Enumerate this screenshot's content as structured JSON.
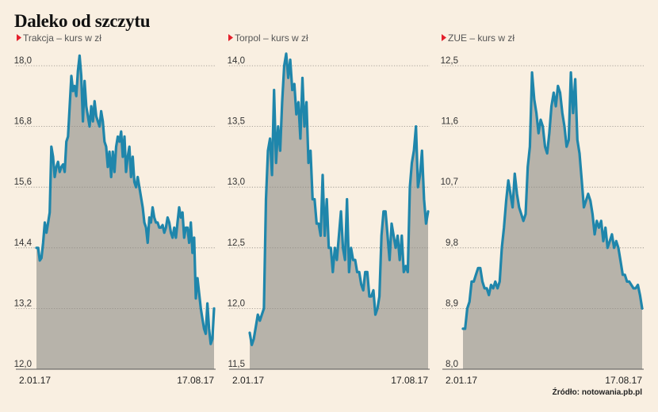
{
  "title": "Daleko od szczytu",
  "source": "Źródło: notowania.pb.pl",
  "colors": {
    "background": "#f9efe1",
    "line": "#1f86ab",
    "area": "#b7b3aa",
    "grid": "#8f8a84",
    "marker": "#e4202c"
  },
  "chart_data": [
    {
      "type": "area",
      "subtitle": "Trakcja – kurs w zł",
      "ylim": [
        12.0,
        18.8
      ],
      "yticks": [
        "18,0",
        "16,8",
        "15,6",
        "14,4",
        "13,2",
        "12,0"
      ],
      "ytick_values": [
        18.0,
        16.8,
        15.6,
        14.4,
        13.2,
        12.0
      ],
      "x_start_label": "2.01.17",
      "x_end_label": "17.08.17",
      "grid": true,
      "values": [
        14.4,
        14.4,
        14.15,
        14.2,
        14.5,
        14.9,
        14.7,
        14.9,
        15.1,
        16.4,
        16.2,
        15.8,
        16.0,
        16.1,
        15.9,
        16.0,
        16.05,
        15.9,
        16.5,
        16.6,
        17.2,
        17.8,
        17.5,
        17.6,
        17.4,
        17.9,
        18.2,
        17.8,
        16.9,
        17.7,
        17.2,
        17.0,
        16.8,
        17.2,
        16.9,
        17.3,
        17.0,
        16.9,
        16.8,
        17.1,
        16.9,
        16.5,
        16.4,
        16.0,
        16.3,
        15.8,
        16.3,
        15.9,
        16.4,
        16.6,
        16.5,
        16.7,
        16.2,
        16.6,
        15.9,
        16.2,
        16.4,
        15.8,
        16.2,
        15.7,
        15.6,
        15.8,
        15.6,
        15.4,
        15.2,
        14.9,
        14.8,
        14.5,
        15.0,
        14.9,
        15.2,
        15.0,
        14.9,
        14.9,
        14.8,
        14.8,
        14.85,
        14.7,
        14.8,
        15.0,
        14.9,
        14.7,
        14.6,
        14.8,
        14.6,
        14.9,
        15.2,
        15.0,
        15.1,
        14.6,
        14.8,
        14.8,
        14.5,
        14.9,
        14.3,
        14.6,
        13.4,
        13.8,
        13.5,
        13.2,
        13.0,
        12.8,
        12.7,
        13.3,
        12.8,
        12.5,
        12.6,
        13.2
      ]
    },
    {
      "type": "area",
      "subtitle": "Torpol – kurs w zł",
      "ylim": [
        11.5,
        14.2
      ],
      "yticks": [
        "14,0",
        "13,5",
        "13,0",
        "12,5",
        "12,0",
        "11,5"
      ],
      "ytick_values": [
        14.0,
        13.5,
        13.0,
        12.5,
        12.0,
        11.5
      ],
      "x_start_label": "2.01.17",
      "x_end_label": "17.08.17",
      "grid": true,
      "values": [
        11.8,
        11.7,
        11.75,
        11.85,
        11.95,
        11.9,
        11.95,
        12.0,
        12.9,
        13.3,
        13.4,
        13.1,
        13.8,
        13.2,
        13.5,
        13.3,
        13.7,
        14.0,
        14.1,
        13.9,
        14.05,
        13.8,
        13.85,
        13.6,
        13.7,
        13.4,
        13.9,
        13.5,
        13.7,
        13.2,
        13.3,
        12.9,
        12.9,
        12.7,
        12.7,
        12.6,
        13.1,
        12.6,
        12.9,
        12.5,
        12.5,
        12.3,
        12.5,
        12.4,
        12.6,
        12.8,
        12.5,
        12.4,
        12.9,
        12.3,
        12.5,
        12.4,
        12.4,
        12.3,
        12.3,
        12.2,
        12.15,
        12.3,
        12.3,
        12.1,
        12.1,
        12.15,
        11.95,
        12.0,
        12.1,
        12.6,
        12.8,
        12.8,
        12.6,
        12.4,
        12.7,
        12.6,
        12.5,
        12.6,
        12.4,
        12.6,
        12.3,
        12.35,
        12.3,
        13.0,
        13.2,
        13.3,
        13.5,
        13.0,
        13.1,
        13.3,
        12.9,
        12.7,
        12.8
      ]
    },
    {
      "type": "area",
      "subtitle": "ZUE – kurs w zł",
      "ylim": [
        8.0,
        12.6
      ],
      "yticks": [
        "12,5",
        "11,6",
        "10,7",
        "9,8",
        "8,9",
        "8,0"
      ],
      "ytick_values": [
        12.5,
        11.6,
        10.7,
        9.8,
        8.9,
        8.0
      ],
      "x_start_label": "2.01.17",
      "x_end_label": "17.08.17",
      "grid": true,
      "values": [
        8.6,
        8.6,
        8.9,
        9.0,
        9.3,
        9.3,
        9.4,
        9.5,
        9.5,
        9.3,
        9.2,
        9.2,
        9.1,
        9.25,
        9.2,
        9.3,
        9.2,
        9.3,
        9.8,
        10.1,
        10.5,
        10.8,
        10.6,
        10.4,
        10.9,
        10.6,
        10.4,
        10.3,
        10.2,
        10.3,
        11.0,
        11.3,
        12.4,
        12.0,
        11.8,
        11.5,
        11.7,
        11.6,
        11.3,
        11.2,
        11.5,
        11.9,
        12.1,
        11.9,
        12.2,
        12.1,
        11.8,
        11.6,
        11.3,
        11.4,
        12.4,
        11.8,
        12.3,
        11.4,
        11.2,
        10.8,
        10.4,
        10.5,
        10.6,
        10.5,
        10.3,
        10.0,
        10.2,
        10.1,
        10.2,
        9.9,
        10.1,
        9.8,
        9.9,
        10.0,
        9.8,
        9.9,
        9.8,
        9.6,
        9.4,
        9.4,
        9.3,
        9.3,
        9.25,
        9.2,
        9.2,
        9.25,
        9.1,
        8.9
      ]
    }
  ]
}
